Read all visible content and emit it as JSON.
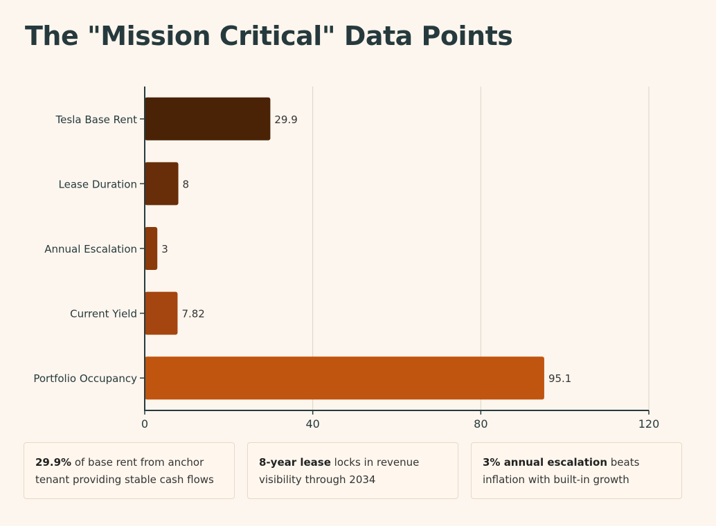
{
  "chart_data": {
    "type": "bar",
    "orientation": "horizontal",
    "title": "The \"Mission Critical\" Data Points",
    "categories": [
      "Tesla Base Rent",
      "Lease Duration",
      "Annual Escalation",
      "Current Yield",
      "Portfolio Occupancy"
    ],
    "values": [
      29.9,
      8,
      3,
      7.82,
      95.1
    ],
    "value_labels": [
      "29.9",
      "8",
      "3",
      "7.82",
      "95.1"
    ],
    "xlim": [
      0,
      120
    ],
    "xticks": [
      0,
      40,
      80,
      120
    ],
    "xlabel": "",
    "ylabel": "",
    "grid": "vertical",
    "colors": [
      "#4a2205",
      "#682d09",
      "#8a3a0b",
      "#a5450f",
      "#c05510"
    ]
  },
  "cards": [
    {
      "bold": "29.9%",
      "rest": " of base rent from anchor tenant providing stable cash flows"
    },
    {
      "bold": "8-year lease",
      "rest": " locks in revenue visibility through 2034"
    },
    {
      "bold": "3% annual escalation",
      "rest": " beats inflation with built-in growth"
    }
  ]
}
